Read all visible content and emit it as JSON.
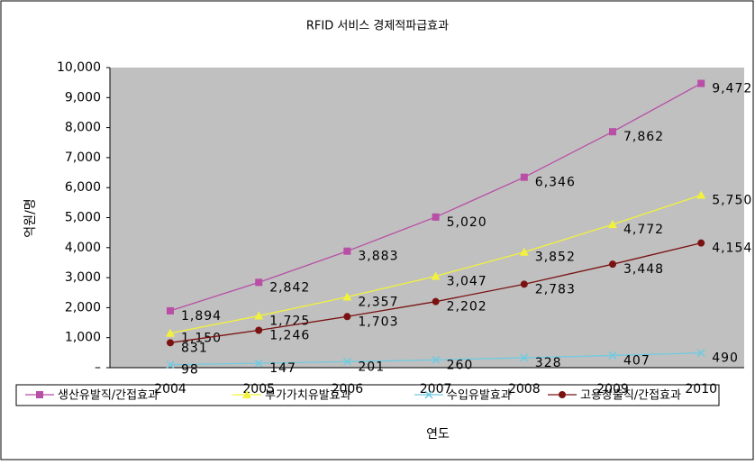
{
  "chart_data": {
    "type": "line",
    "title": "RFID 서비스 경제적파급효과",
    "x_label": "연도",
    "y_label": "억원/명",
    "categories": [
      "2004",
      "2005",
      "2006",
      "2007",
      "2008",
      "2009",
      "2010"
    ],
    "series": [
      {
        "name": "생산유발직/간접효과",
        "color": "#b84ea5",
        "marker": "square",
        "values": [
          1894,
          2842,
          3883,
          5020,
          6346,
          7862,
          9472
        ],
        "value_labels": [
          "1,894",
          "2,842",
          "3,883",
          "5,020",
          "6,346",
          "7,862",
          "9,472"
        ]
      },
      {
        "name": "부가가치유발효과",
        "color": "#f2f23c",
        "marker": "triangle",
        "values": [
          1150,
          1725,
          2357,
          3047,
          3852,
          4772,
          5750
        ],
        "value_labels": [
          "1,150",
          "1,725",
          "2,357",
          "3,047",
          "3,852",
          "4,772",
          "5,750"
        ]
      },
      {
        "name": "수입유발효과",
        "color": "#6fcbe0",
        "marker": "x",
        "values": [
          98,
          147,
          201,
          260,
          328,
          407,
          490
        ]
      },
      {
        "name": "고용창출직/간접효과",
        "color": "#7a1212",
        "marker": "circle",
        "values": [
          831,
          1246,
          1703,
          2202,
          2783,
          3448,
          4154
        ],
        "value_labels": [
          "831",
          "1,246",
          "1,703",
          "2,202",
          "2,783",
          "3,448",
          "4,154"
        ]
      }
    ],
    "ylim": [
      0,
      10000
    ],
    "yticks": [
      {
        "value": 0,
        "label": "–"
      },
      {
        "value": 1000,
        "label": "1,000"
      },
      {
        "value": 2000,
        "label": "2,000"
      },
      {
        "value": 3000,
        "label": "3,000"
      },
      {
        "value": 4000,
        "label": "4,000"
      },
      {
        "value": 5000,
        "label": "5,000"
      },
      {
        "value": 6000,
        "label": "6,000"
      },
      {
        "value": 7000,
        "label": "7,000"
      },
      {
        "value": 8000,
        "label": "8,000"
      },
      {
        "value": 9000,
        "label": "9,000"
      },
      {
        "value": 10000,
        "label": "10,000"
      }
    ],
    "legend": "bottom"
  }
}
